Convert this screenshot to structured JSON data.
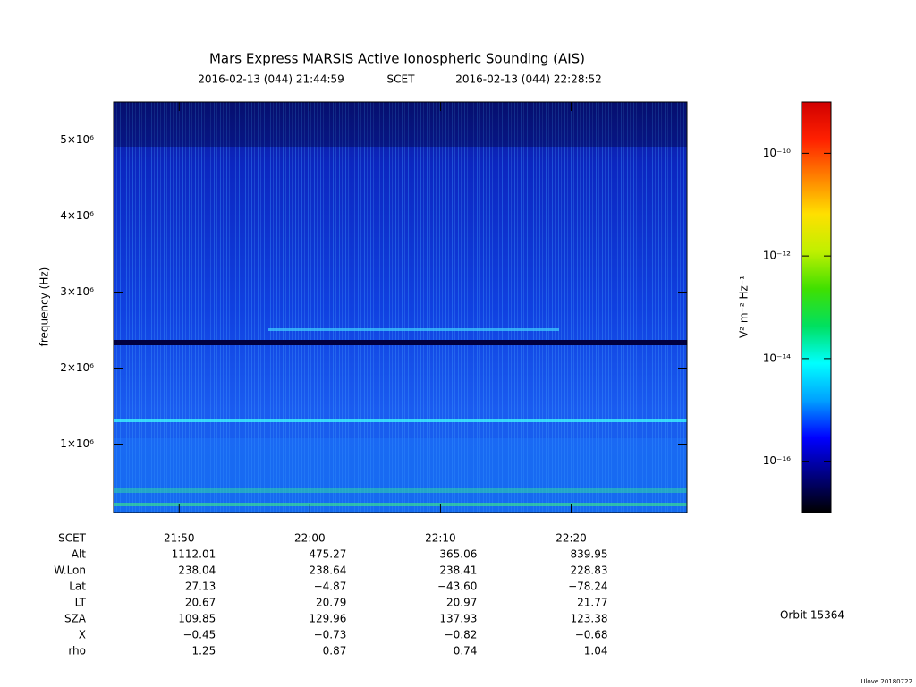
{
  "chart_data": {
    "type": "spectrogram",
    "title": "Mars Express MARSIS Active Ionospheric Sounding (AIS)",
    "start": "2016-02-13 (044) 21:44:59",
    "time_label": "SCET",
    "end": "2016-02-13 (044) 22:28:52",
    "ylabel": "frequency (Hz)",
    "xlim": [
      "21:44:59",
      "22:28:52"
    ],
    "xticks": [
      "21:50",
      "22:00",
      "22:10",
      "22:20"
    ],
    "ylim": [
      100000,
      5500000
    ],
    "yticks": [
      {
        "value": 1000000,
        "label": "1×10⁶"
      },
      {
        "value": 2000000,
        "label": "2×10⁶"
      },
      {
        "value": 3000000,
        "label": "3×10⁶"
      },
      {
        "value": 4000000,
        "label": "4×10⁶"
      },
      {
        "value": 5000000,
        "label": "5×10⁶"
      }
    ],
    "colorbar": {
      "label": "V² m⁻² Hz⁻¹",
      "scale": "log",
      "lim": [
        1e-17,
        1e-09
      ],
      "ticks": [
        {
          "value": 1e-16,
          "label": "10⁻¹⁶"
        },
        {
          "value": 1e-14,
          "label": "10⁻¹⁴"
        },
        {
          "value": 1e-12,
          "label": "10⁻¹²"
        },
        {
          "value": 1e-10,
          "label": "10⁻¹⁰"
        }
      ],
      "colors": [
        "#000000",
        "#000080",
        "#0000ff",
        "#00a0ff",
        "#00ffff",
        "#00e060",
        "#40e000",
        "#c0f000",
        "#ffe000",
        "#ff8000",
        "#ff2000",
        "#d00000"
      ]
    },
    "ephemeris": {
      "x_label": "SCET",
      "rows": [
        {
          "name": "Alt",
          "values": [
            1112.01,
            475.27,
            365.06,
            839.95
          ]
        },
        {
          "name": "W.Lon",
          "values": [
            238.04,
            238.64,
            238.41,
            228.83
          ]
        },
        {
          "name": "Lat",
          "values": [
            27.13,
            -4.87,
            -43.6,
            -78.24
          ],
          "value_labels": [
            "27.13",
            "−4.87",
            "−43.60",
            "−78.24"
          ]
        },
        {
          "name": "LT",
          "values": [
            20.67,
            20.79,
            20.97,
            21.77
          ]
        },
        {
          "name": "SZA",
          "values": [
            109.85,
            129.96,
            137.93,
            123.38
          ]
        },
        {
          "name": "X",
          "values": [
            -0.45,
            -0.73,
            -0.82,
            -0.68
          ],
          "value_labels": [
            "−0.45",
            "−0.73",
            "−0.82",
            "−0.68"
          ]
        },
        {
          "name": "rho",
          "values": [
            1.25,
            0.87,
            0.74,
            1.04
          ]
        }
      ]
    },
    "orbit": "Orbit 15364",
    "credit": "Ulove 20180722"
  }
}
